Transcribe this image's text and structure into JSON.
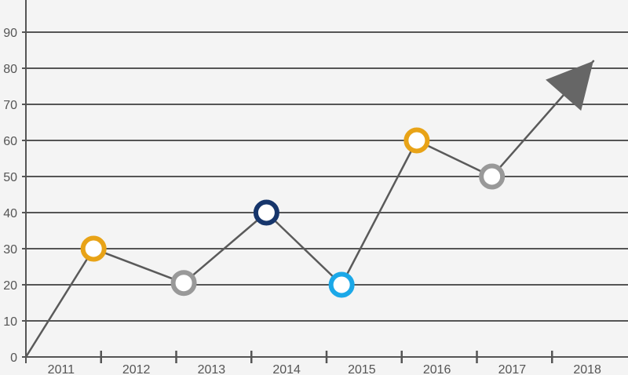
{
  "colors": {
    "background": "#f4f4f4",
    "grid": "#555555",
    "axis": "#555555",
    "line": "#5a5a5a",
    "arrow": "#666666",
    "label": "#555555"
  },
  "chart_data": {
    "type": "line",
    "title": "",
    "xlabel": "",
    "ylabel": "",
    "ylim": [
      0,
      90
    ],
    "yticks": [
      0,
      10,
      20,
      30,
      40,
      50,
      60,
      70,
      80,
      90
    ],
    "categories": [
      "2011",
      "2012",
      "2013",
      "2014",
      "2015",
      "2016",
      "2017",
      "2018"
    ],
    "grid": true,
    "legend": "none",
    "series": [
      {
        "points": [
          {
            "x": "2011",
            "y": 0
          },
          {
            "x": "2011.9",
            "y": 30,
            "marker_color": "#e8a317"
          },
          {
            "x": "2013.1",
            "y": 20.5,
            "marker_color": "#999999"
          },
          {
            "x": "2014.2",
            "y": 40,
            "marker_color": "#16356b"
          },
          {
            "x": "2015.2",
            "y": 20,
            "marker_color": "#1ba8e8"
          },
          {
            "x": "2016.2",
            "y": 60,
            "marker_color": "#e8a317"
          },
          {
            "x": "2017.2",
            "y": 50,
            "marker_color": "#999999"
          },
          {
            "x": "2018.55",
            "y": 82,
            "marker": "arrow"
          }
        ]
      }
    ]
  }
}
